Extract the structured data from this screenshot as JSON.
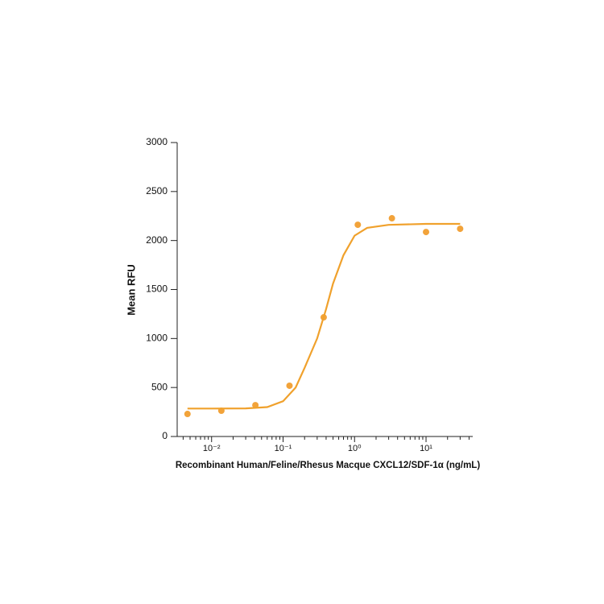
{
  "chart_data": {
    "type": "scatter",
    "xlabel": "Recombinant Human/Feline/Rhesus Macque CXCL12/SDF-1α (ng/mL)",
    "ylabel": "Mean RFU",
    "xscale": "log",
    "xlim": [
      0.0033,
      45
    ],
    "ylim": [
      0,
      3000
    ],
    "yticks": [
      0,
      500,
      1000,
      1500,
      2000,
      2500,
      3000
    ],
    "xticks": [
      {
        "value": 0.01,
        "label": "10⁻²"
      },
      {
        "value": 0.1,
        "label": "10⁻¹"
      },
      {
        "value": 1,
        "label": "10⁰"
      },
      {
        "value": 10,
        "label": "10¹"
      }
    ],
    "xminorticks": [
      0.004,
      0.005,
      0.006,
      0.007,
      0.008,
      0.009,
      0.02,
      0.03,
      0.04,
      0.05,
      0.06,
      0.07,
      0.08,
      0.09,
      0.2,
      0.3,
      0.4,
      0.5,
      0.6,
      0.7,
      0.8,
      0.9,
      2,
      3,
      4,
      5,
      6,
      7,
      8,
      9,
      20,
      30,
      40
    ],
    "series": [
      {
        "mode": "markers",
        "color": "#f2a33a",
        "x": [
          0.0046,
          0.0137,
          0.041,
          0.123,
          0.37,
          1.11,
          3.33,
          10,
          30
        ],
        "values": [
          230,
          263,
          320,
          518,
          1216,
          2161,
          2227,
          2087,
          2120
        ]
      },
      {
        "mode": "line",
        "color": "#f0a12c",
        "x": [
          0.0046,
          0.01,
          0.03,
          0.06,
          0.1,
          0.15,
          0.2,
          0.3,
          0.4,
          0.5,
          0.7,
          1,
          1.5,
          3,
          10,
          30
        ],
        "values": [
          285,
          285,
          287,
          300,
          360,
          500,
          700,
          1000,
          1300,
          1560,
          1850,
          2050,
          2130,
          2160,
          2170,
          2170
        ]
      }
    ]
  }
}
